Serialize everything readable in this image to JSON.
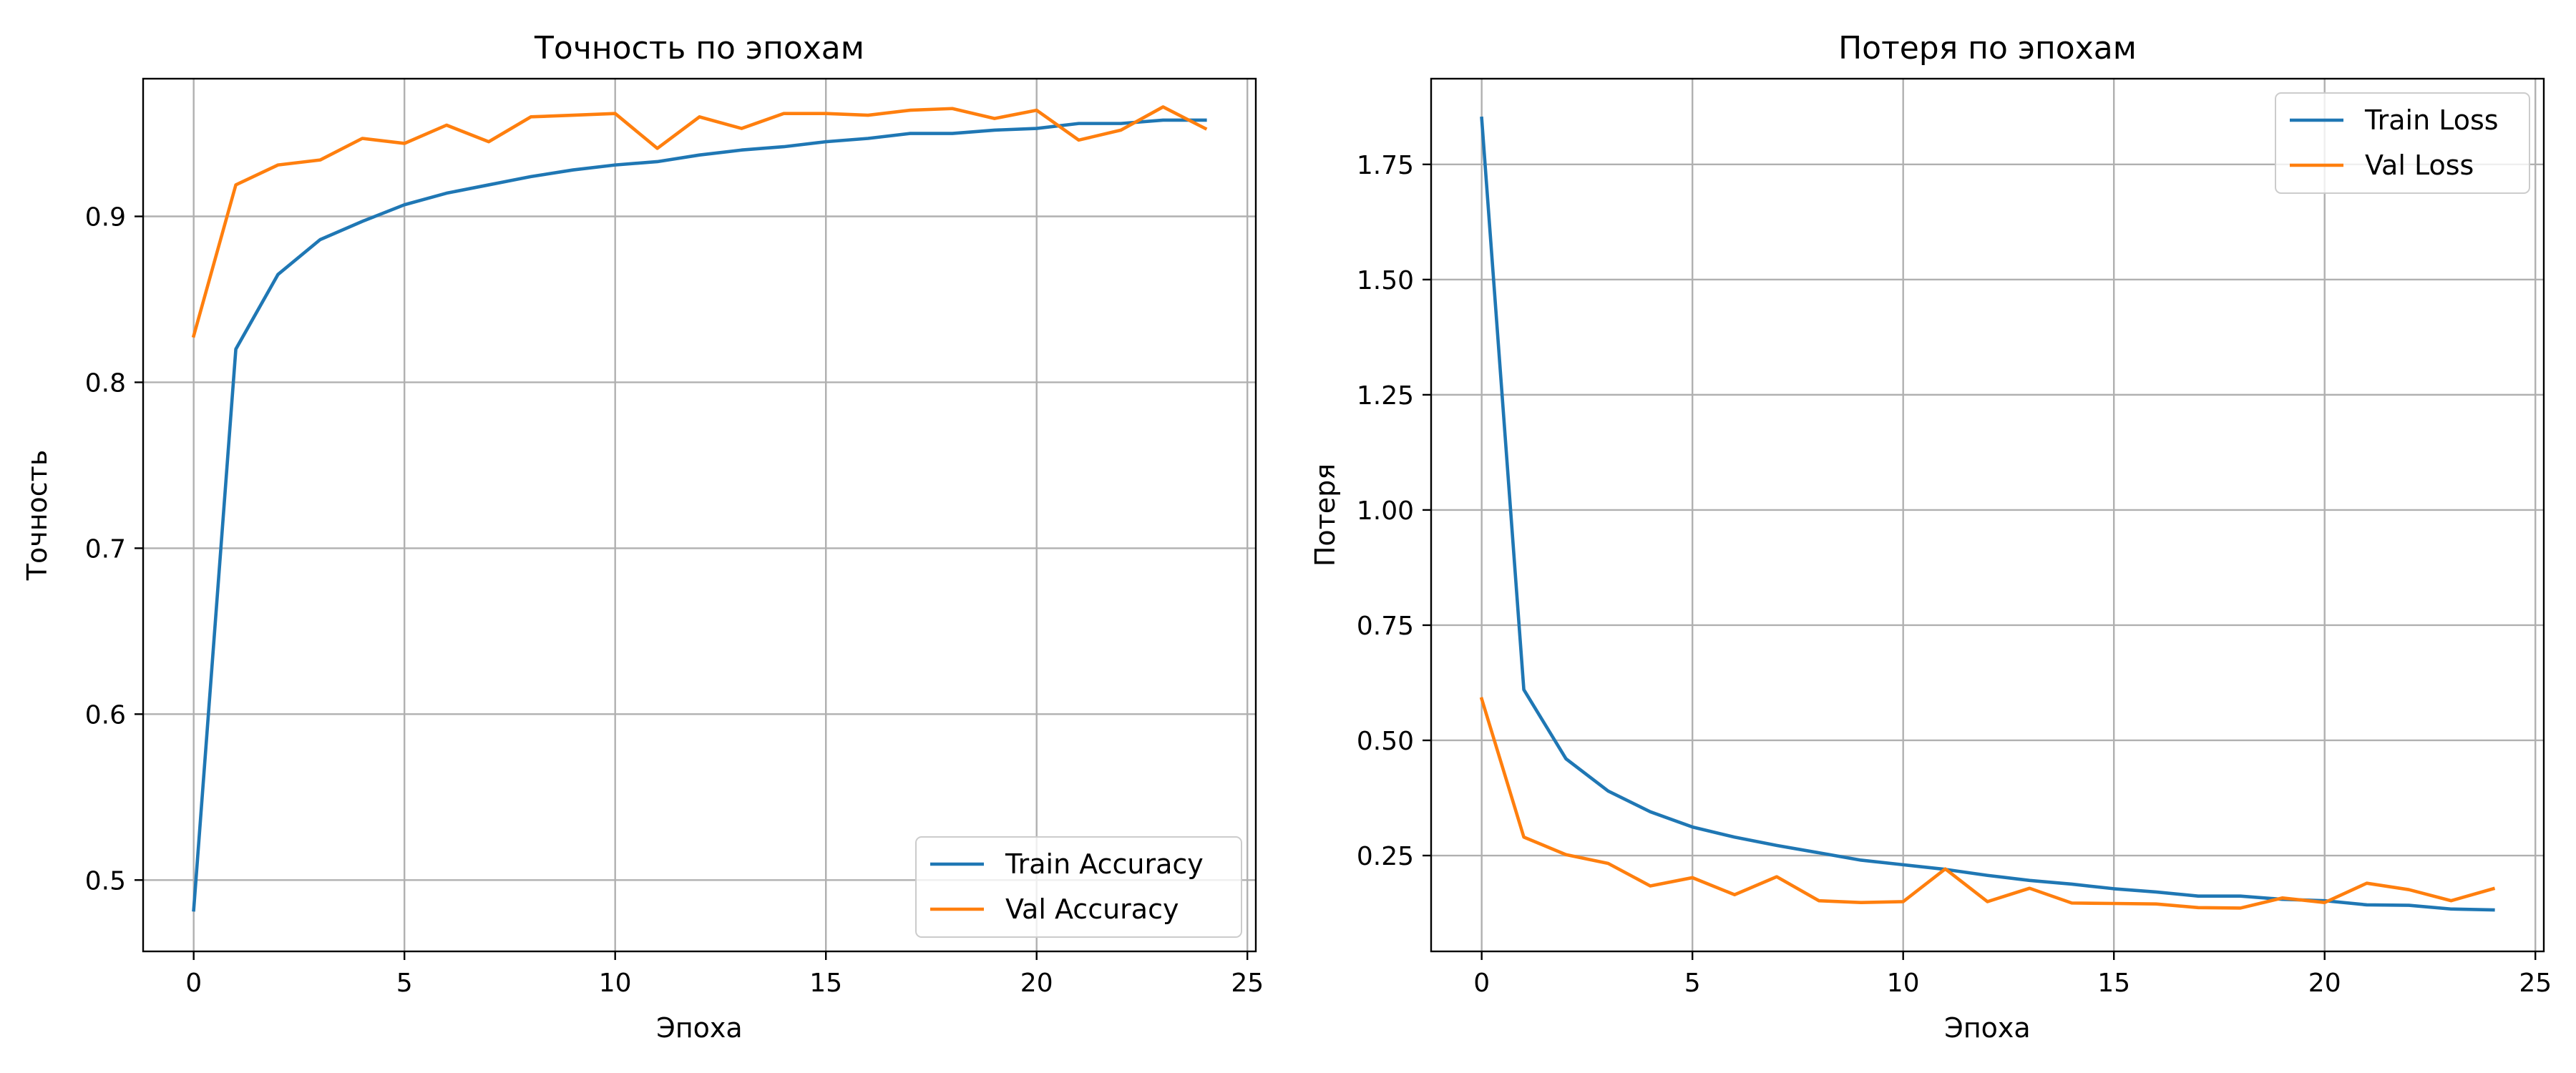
{
  "chart_data": [
    {
      "type": "line",
      "title": "Точность по эпохам",
      "xlabel": "Эпоха",
      "ylabel": "Точность",
      "xlim": [
        -1.2,
        25.2
      ],
      "ylim": [
        0.457,
        0.983
      ],
      "xticks": [
        0,
        5,
        10,
        15,
        20,
        25
      ],
      "yticks": [
        0.5,
        0.6,
        0.7,
        0.8,
        0.9
      ],
      "ytick_labels": [
        "0.5",
        "0.6",
        "0.7",
        "0.8",
        "0.9"
      ],
      "grid": true,
      "legend_position": "lower-right",
      "x": [
        0,
        1,
        2,
        3,
        4,
        5,
        6,
        7,
        8,
        9,
        10,
        11,
        12,
        13,
        14,
        15,
        16,
        17,
        18,
        19,
        20,
        21,
        22,
        23,
        24
      ],
      "series": [
        {
          "name": "Train Accuracy",
          "color": "#1f77b4",
          "values": [
            0.482,
            0.82,
            0.865,
            0.886,
            0.897,
            0.907,
            0.914,
            0.919,
            0.924,
            0.928,
            0.931,
            0.933,
            0.937,
            0.94,
            0.942,
            0.945,
            0.947,
            0.95,
            0.95,
            0.952,
            0.953,
            0.956,
            0.956,
            0.958,
            0.958
          ]
        },
        {
          "name": "Val Accuracy",
          "color": "#ff7f0e",
          "values": [
            0.828,
            0.919,
            0.931,
            0.934,
            0.947,
            0.944,
            0.955,
            0.945,
            0.96,
            0.961,
            0.962,
            0.941,
            0.96,
            0.953,
            0.962,
            0.962,
            0.961,
            0.964,
            0.965,
            0.959,
            0.964,
            0.946,
            0.952,
            0.966,
            0.953
          ]
        }
      ]
    },
    {
      "type": "line",
      "title": "Потеря по эпохам",
      "xlabel": "Эпоха",
      "ylabel": "Потеря",
      "xlim": [
        -1.2,
        25.2
      ],
      "ylim": [
        0.042,
        1.936
      ],
      "xticks": [
        0,
        5,
        10,
        15,
        20,
        25
      ],
      "yticks": [
        0.25,
        0.5,
        0.75,
        1.0,
        1.25,
        1.5,
        1.75
      ],
      "ytick_labels": [
        "0.25",
        "0.50",
        "0.75",
        "1.00",
        "1.25",
        "1.50",
        "1.75"
      ],
      "grid": true,
      "legend_position": "top-right",
      "x": [
        0,
        1,
        2,
        3,
        4,
        5,
        6,
        7,
        8,
        9,
        10,
        11,
        12,
        13,
        14,
        15,
        16,
        17,
        18,
        19,
        20,
        21,
        22,
        23,
        24
      ],
      "series": [
        {
          "name": "Train Loss",
          "color": "#1f77b4",
          "values": [
            1.85,
            0.61,
            0.46,
            0.39,
            0.345,
            0.312,
            0.29,
            0.272,
            0.256,
            0.24,
            0.23,
            0.22,
            0.207,
            0.196,
            0.188,
            0.178,
            0.171,
            0.162,
            0.162,
            0.155,
            0.152,
            0.143,
            0.142,
            0.134,
            0.132
          ]
        },
        {
          "name": "Val Loss",
          "color": "#ff7f0e",
          "values": [
            0.59,
            0.29,
            0.252,
            0.233,
            0.184,
            0.202,
            0.165,
            0.204,
            0.152,
            0.148,
            0.15,
            0.221,
            0.15,
            0.179,
            0.147,
            0.146,
            0.145,
            0.137,
            0.136,
            0.158,
            0.148,
            0.19,
            0.176,
            0.152,
            0.178
          ]
        }
      ]
    }
  ]
}
